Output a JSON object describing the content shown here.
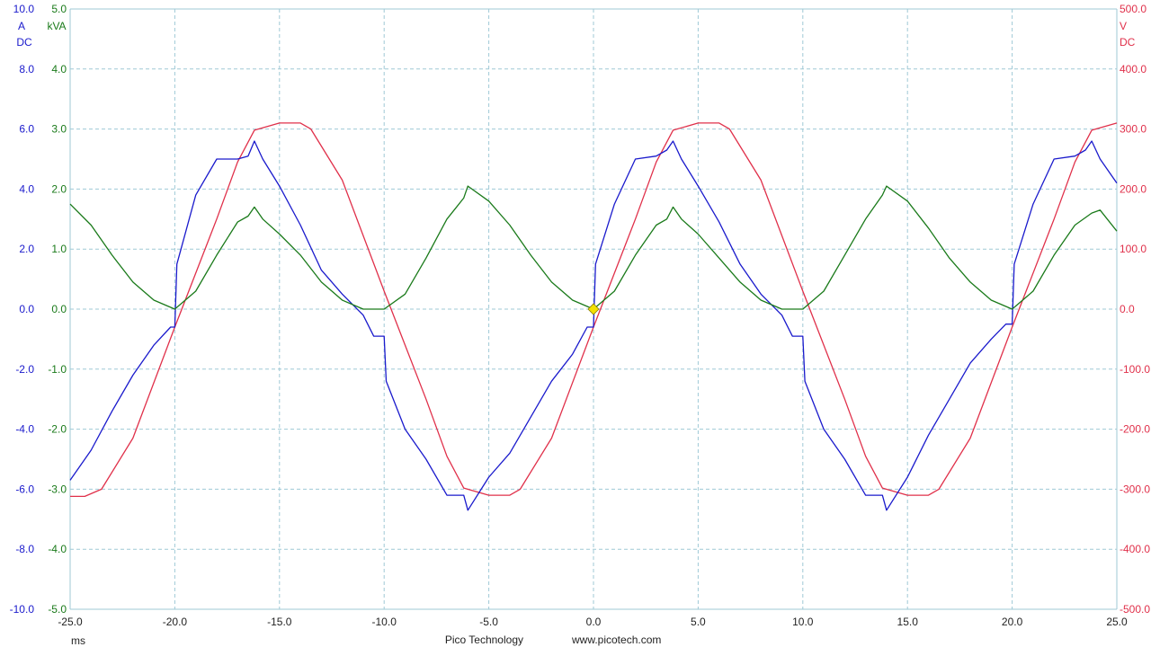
{
  "chart_data": {
    "type": "line",
    "title": "",
    "footer": {
      "brand": "Pico Technology",
      "url": "www.picotech.com"
    },
    "x_axis": {
      "unit": "ms",
      "range": [
        -25.0,
        25.0
      ],
      "ticks": [
        "-25.0",
        "-20.0",
        "-15.0",
        "-10.0",
        "-5.0",
        "0.0",
        "5.0",
        "10.0",
        "15.0",
        "20.0",
        "25.0"
      ]
    },
    "y_axes": {
      "current": {
        "unit": "A",
        "coupling": "DC",
        "color": "#1a1acc",
        "range": [
          -10.0,
          10.0
        ],
        "ticks": [
          "10.0",
          "8.0",
          "6.0",
          "4.0",
          "2.0",
          "0.0",
          "-2.0",
          "-4.0",
          "-6.0",
          "-8.0",
          "-10.0"
        ]
      },
      "power": {
        "unit": "kVA",
        "color": "#1a7a1a",
        "range": [
          -5.0,
          5.0
        ],
        "ticks": [
          "5.0",
          "4.0",
          "3.0",
          "2.0",
          "1.0",
          "0.0",
          "-1.0",
          "-2.0",
          "-3.0",
          "-4.0",
          "-5.0"
        ]
      },
      "voltage": {
        "unit": "V",
        "coupling": "DC",
        "color": "#e0304a",
        "range": [
          -500.0,
          500.0
        ],
        "ticks": [
          "500.0",
          "400.0",
          "300.0",
          "200.0",
          "100.0",
          "0.0",
          "-100.0",
          "-200.0",
          "-300.0",
          "-400.0",
          "-500.0"
        ]
      }
    },
    "grid": true,
    "trigger_marker": {
      "x": 0.0,
      "y_voltage": 0.0,
      "color": "#f2e000"
    },
    "series": [
      {
        "axis": "voltage",
        "color": "#e0304a",
        "x": [
          -25,
          -24.3,
          -23.5,
          -22,
          -20,
          -18,
          -17,
          -16.2,
          -15,
          -14,
          -13.5,
          -12,
          -10,
          -8,
          -7,
          -6.2,
          -5,
          -4,
          -3.5,
          -2,
          0,
          2,
          3,
          3.8,
          5,
          6,
          6.5,
          8,
          10,
          12,
          13,
          13.8,
          15,
          16,
          16.5,
          18,
          20,
          22,
          23,
          23.8,
          25
        ],
        "y": [
          -312,
          -312,
          -300,
          -215,
          -30,
          150,
          245,
          298,
          310,
          310,
          300,
          215,
          30,
          -150,
          -245,
          -298,
          -310,
          -310,
          -300,
          -215,
          -30,
          150,
          245,
          298,
          310,
          310,
          300,
          215,
          30,
          -150,
          -245,
          -298,
          -310,
          -310,
          -300,
          -215,
          -30,
          150,
          245,
          298,
          310
        ]
      },
      {
        "axis": "current",
        "color": "#1a1acc",
        "x": [
          -25,
          -24,
          -23,
          -22,
          -21,
          -20.2,
          -20.0,
          -19.9,
          -19,
          -18,
          -17,
          -16.5,
          -16.2,
          -15.8,
          -15,
          -14,
          -13,
          -12,
          -11,
          -10.5,
          -10.2,
          -10.0,
          -9.9,
          -9,
          -8,
          -7,
          -6.5,
          -6.2,
          -6.0,
          -5,
          -4,
          -3,
          -2,
          -1,
          -0.3,
          0,
          0.1,
          1,
          2,
          3,
          3.5,
          3.8,
          4.2,
          5,
          6,
          7,
          8,
          9,
          9.5,
          9.8,
          10.0,
          10.1,
          11,
          12,
          13,
          13.5,
          13.8,
          14.0,
          15,
          16,
          17,
          18,
          19,
          19.7,
          20.0,
          20.1,
          21,
          22,
          23,
          23.5,
          23.8,
          24.2,
          25
        ],
        "y": [
          -5.7,
          -4.7,
          -3.4,
          -2.2,
          -1.2,
          -0.6,
          -0.6,
          1.5,
          3.8,
          5.0,
          5.0,
          5.1,
          5.6,
          5.0,
          4.1,
          2.8,
          1.3,
          0.5,
          -0.2,
          -0.9,
          -0.9,
          -0.9,
          -2.4,
          -4.0,
          -5.0,
          -6.2,
          -6.2,
          -6.2,
          -6.7,
          -5.6,
          -4.8,
          -3.6,
          -2.4,
          -1.5,
          -0.6,
          -0.6,
          1.5,
          3.5,
          5.0,
          5.1,
          5.3,
          5.6,
          5.0,
          4.1,
          2.9,
          1.5,
          0.5,
          -0.2,
          -0.9,
          -0.9,
          -0.9,
          -2.4,
          -4.0,
          -5.0,
          -6.2,
          -6.2,
          -6.2,
          -6.7,
          -5.6,
          -4.2,
          -3.0,
          -1.8,
          -1.0,
          -0.5,
          -0.5,
          1.5,
          3.5,
          5.0,
          5.1,
          5.3,
          5.6,
          5.0,
          4.2
        ]
      },
      {
        "axis": "power",
        "color": "#1a7a1a",
        "x": [
          -25,
          -24,
          -23,
          -22,
          -21,
          -20,
          -19,
          -18,
          -17,
          -16.5,
          -16.2,
          -15.8,
          -15,
          -14,
          -13,
          -12,
          -11,
          -10,
          -9,
          -8,
          -7,
          -6.2,
          -6.0,
          -5,
          -4,
          -3,
          -2,
          -1,
          0,
          1,
          2,
          3,
          3.5,
          3.8,
          4.2,
          5,
          6,
          7,
          8,
          9,
          10,
          11,
          12,
          13,
          13.8,
          14.0,
          15,
          16,
          17,
          18,
          19,
          20,
          21,
          22,
          23,
          23.8,
          24.2,
          25
        ],
        "y": [
          1.75,
          1.4,
          0.9,
          0.45,
          0.15,
          0.0,
          0.3,
          0.9,
          1.45,
          1.55,
          1.7,
          1.5,
          1.25,
          0.9,
          0.45,
          0.15,
          0.0,
          0.0,
          0.25,
          0.85,
          1.5,
          1.85,
          2.05,
          1.8,
          1.4,
          0.9,
          0.45,
          0.15,
          0.0,
          0.3,
          0.9,
          1.4,
          1.5,
          1.7,
          1.5,
          1.25,
          0.85,
          0.45,
          0.15,
          0.0,
          0.0,
          0.3,
          0.9,
          1.5,
          1.9,
          2.05,
          1.8,
          1.35,
          0.85,
          0.45,
          0.15,
          0.0,
          0.3,
          0.9,
          1.4,
          1.6,
          1.65,
          1.3
        ]
      }
    ]
  }
}
